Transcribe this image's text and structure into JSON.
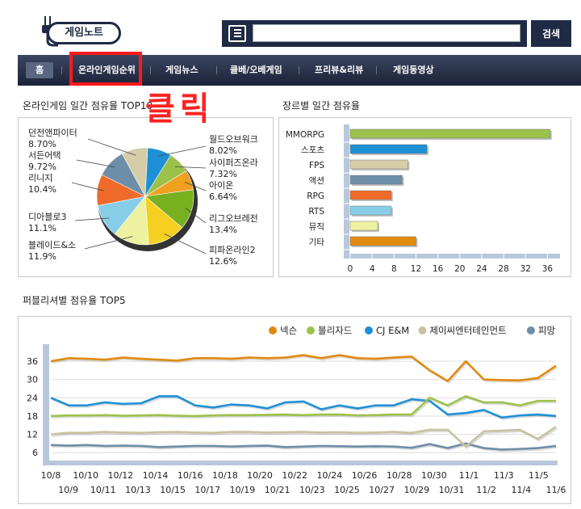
{
  "header": {
    "logo_text": "게임노트",
    "search_placeholder": "",
    "search_button": "검색"
  },
  "nav": {
    "home": "홈",
    "items": [
      "온라인게임순위",
      "게임뉴스",
      "클베/오베게임",
      "프리뷰&리뷰",
      "게임동영상"
    ]
  },
  "annotation": {
    "text": "클릭",
    "color": "#ff1a1a"
  },
  "pie_section": {
    "title": "온라인게임 일간 점유율 TOP10",
    "chart_data": {
      "type": "pie",
      "slices": [
        {
          "name": "월드오브워크",
          "pct_label": "8.02%",
          "value": 8.02,
          "color": "#1e90d6"
        },
        {
          "name": "사이퍼즈온라",
          "pct_label": "7.32%",
          "value": 7.32,
          "color": "#9cc14a"
        },
        {
          "name": "아이온",
          "pct_label": "6.64%",
          "value": 6.64,
          "color": "#f0a020"
        },
        {
          "name": "리그오브레전",
          "pct_label": "13.4%",
          "value": 13.4,
          "color": "#78b020"
        },
        {
          "name": "피파온라인2",
          "pct_label": "12.6%",
          "value": 12.6,
          "color": "#f5d020"
        },
        {
          "name": "블레이드&소",
          "pct_label": "11.9%",
          "value": 11.9,
          "color": "#ecf2a0"
        },
        {
          "name": "디아블로3",
          "pct_label": "11.1%",
          "value": 11.1,
          "color": "#88cde8"
        },
        {
          "name": "리니지",
          "pct_label": "10.4%",
          "value": 10.4,
          "color": "#f06a2a"
        },
        {
          "name": "서든어택",
          "pct_label": "9.72%",
          "value": 9.72,
          "color": "#6e8ea8"
        },
        {
          "name": "던전앤파이터",
          "pct_label": "8.70%",
          "value": 8.7,
          "color": "#d4cda8"
        }
      ]
    }
  },
  "bar_section": {
    "title": "장르별 일간 점유율",
    "chart_data": {
      "type": "bar",
      "orientation": "horizontal",
      "categories": [
        "MMORPG",
        "스포츠",
        "FPS",
        "액션",
        "RPG",
        "RTS",
        "뮤직",
        "기타"
      ],
      "values": [
        36.5,
        14,
        10.5,
        9.5,
        7.5,
        7.5,
        5,
        12
      ],
      "colors": [
        "#9cc14a",
        "#1e90d6",
        "#d4cda8",
        "#6e8ea8",
        "#f06a2a",
        "#88cde8",
        "#ecf2a0",
        "#e08a10"
      ],
      "xticks": [
        0,
        4,
        8,
        12,
        16,
        20,
        24,
        28,
        32,
        36
      ],
      "xlim": [
        0,
        38
      ]
    }
  },
  "line_section": {
    "title": "퍼블리셔별 점유율 TOP5",
    "chart_data": {
      "type": "line",
      "x_top": [
        "10/8",
        "10/10",
        "10/12",
        "10/14",
        "10/16",
        "10/18",
        "10/20",
        "10/22",
        "10/24",
        "10/26",
        "10/28",
        "10/30",
        "11/1",
        "11/3",
        "11/5"
      ],
      "x_bottom": [
        "10/9",
        "10/11",
        "10/13",
        "10/15",
        "10/17",
        "10/19",
        "10/21",
        "10/23",
        "10/25",
        "10/27",
        "10/29",
        "10/31",
        "11/2",
        "11/4",
        "11/6"
      ],
      "yticks": [
        6,
        12,
        18,
        24,
        30,
        36
      ],
      "ylim": [
        5,
        40
      ],
      "series": [
        {
          "name": "넥슨",
          "color": "#e08a10",
          "values": [
            36,
            37,
            36.8,
            36.5,
            37.2,
            36.8,
            36.5,
            36.2,
            37,
            37,
            36.8,
            37.2,
            37,
            37.2,
            38,
            37,
            38,
            37,
            36.8,
            37.2,
            37.5,
            33,
            29.5,
            36,
            30,
            29.8,
            29.7,
            30.5,
            34.5
          ]
        },
        {
          "name": "블리자드",
          "color": "#9cc14a",
          "values": [
            18,
            18.2,
            18.2,
            18.3,
            18.1,
            18.2,
            18.3,
            18.1,
            18,
            18.2,
            18.3,
            18.3,
            18.4,
            18.5,
            18.3,
            18.5,
            18.5,
            18.2,
            18.3,
            18.5,
            18.5,
            24,
            21.5,
            24.5,
            22.5,
            22.5,
            21.5,
            23,
            23
          ]
        },
        {
          "name": "CJ E&M",
          "color": "#1e90d6",
          "values": [
            24,
            21.5,
            21.5,
            22.5,
            22,
            22.2,
            24.5,
            24.5,
            21.5,
            20.8,
            21.8,
            21.5,
            20.5,
            22.5,
            22.8,
            20.2,
            21.5,
            20.5,
            21.5,
            21.5,
            23.5,
            23,
            18.5,
            19,
            20,
            17.5,
            18.2,
            18.5,
            18
          ]
        },
        {
          "name": "제이씨엔터테인먼트",
          "color": "#c8c3a0",
          "values": [
            12,
            12.5,
            12.5,
            12.8,
            12.6,
            12.5,
            12.7,
            12.8,
            12.6,
            12.5,
            12.8,
            12.8,
            12.6,
            12.7,
            12.8,
            12.6,
            12.7,
            12.5,
            12.6,
            12.8,
            12.5,
            13.5,
            13.5,
            8,
            13,
            13.2,
            13.5,
            10.5,
            14.5
          ]
        },
        {
          "name": "피망",
          "color": "#6e8ea8",
          "values": [
            8.5,
            8.3,
            8.5,
            8.2,
            8.3,
            8.2,
            7.8,
            8,
            8.2,
            8.2,
            8,
            8.2,
            8.3,
            7.8,
            8,
            8.2,
            8.1,
            8,
            8.1,
            8,
            7.6,
            8.8,
            7.5,
            9,
            7.5,
            7,
            7.2,
            7.5,
            8.2
          ]
        }
      ]
    }
  }
}
